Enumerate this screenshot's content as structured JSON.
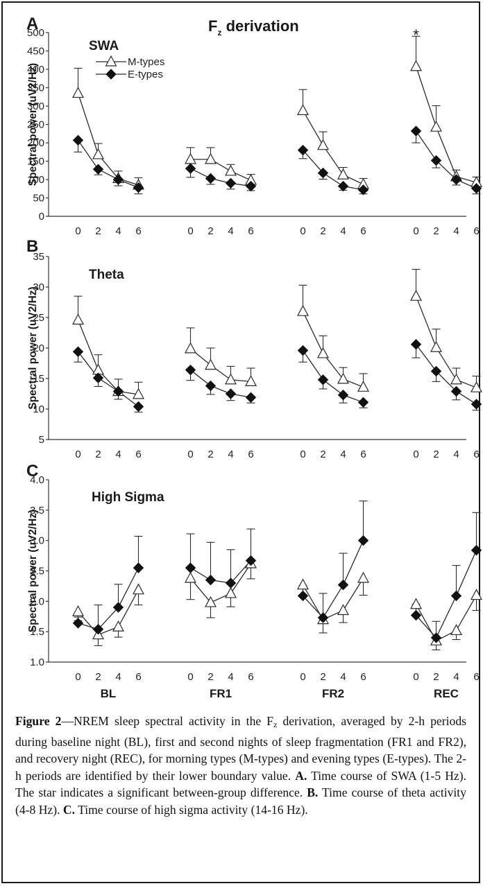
{
  "figure_title": "F",
  "figure_title_sub": "z",
  "figure_title_rest": " derivation",
  "legend": {
    "m_label": "M-types",
    "e_label": "E-types"
  },
  "group_labels": [
    "BL",
    "FR1",
    "FR2",
    "REC"
  ],
  "hour_ticks": [
    "0",
    "2",
    "4",
    "6"
  ],
  "colors": {
    "line": "#2a2a2a",
    "m_fill": "#ffffff",
    "e_fill": "#111111"
  },
  "caption": {
    "fig_label": "Figure 2",
    "text1": "—NREM sleep spectral activity in the F",
    "sub": "z",
    "text2": " derivation, averaged by 2-h periods during baseline night (BL), first and second nights of sleep fragmentation (FR1 and FR2), and recovery night (REC), for morning types (M-types) and evening types (E-types). The 2-h periods are identified by their lower boundary value. ",
    "a_label": "A.",
    "a_text": " Time course of SWA (1-5 Hz). The star indicates a significant between-group difference. ",
    "b_label": "B.",
    "b_text": " Time course of theta activity (4-8 Hz). ",
    "c_label": "C.",
    "c_text": " Time course of high sigma activity (14-16 Hz)."
  },
  "chart_data": [
    {
      "type": "line",
      "panel": "A",
      "title": "SWA",
      "ylabel": "Spectral power (uV2/Hz)",
      "ylim": [
        0,
        500
      ],
      "yticks": [
        "0",
        "50",
        "100",
        "150",
        "200",
        "250",
        "300",
        "350",
        "400",
        "450",
        "500"
      ],
      "grid": false,
      "legend_position": "top-left",
      "significance_marker": {
        "text": "*",
        "group": 3,
        "x": 0
      },
      "groups": [
        "BL",
        "FR1",
        "FR2",
        "REC"
      ],
      "x": [
        0,
        2,
        4,
        6
      ],
      "series": [
        {
          "name": "M-types",
          "marker": "open-triangle",
          "values": [
            [
              335,
              168,
              103,
              85
            ],
            [
              155,
              155,
              123,
              98
            ],
            [
              288,
              193,
              113,
              87
            ],
            [
              408,
              243,
              108,
              92
            ]
          ],
          "errors": [
            [
              68,
              30,
              20,
              20
            ],
            [
              32,
              32,
              18,
              16
            ],
            [
              57,
              37,
              20,
              16
            ],
            [
              82,
              58,
              18,
              15
            ]
          ],
          "error_dir": "up"
        },
        {
          "name": "E-types",
          "marker": "filled-diamond",
          "values": [
            [
              207,
              128,
              100,
              78
            ],
            [
              130,
              103,
              90,
              82
            ],
            [
              180,
              118,
              82,
              72
            ],
            [
              232,
              152,
              100,
              76
            ]
          ],
          "errors": [
            [
              32,
              15,
              17,
              17
            ],
            [
              24,
              16,
              16,
              12
            ],
            [
              23,
              17,
              11,
              11
            ],
            [
              32,
              20,
              15,
              15
            ]
          ],
          "error_dir": "down"
        }
      ]
    },
    {
      "type": "line",
      "panel": "B",
      "title": "Theta",
      "ylabel": "Spectral power (uV2/Hz)",
      "ylim": [
        5,
        35
      ],
      "yticks": [
        "5",
        "10",
        "15",
        "20",
        "25",
        "30",
        "35"
      ],
      "grid": false,
      "groups": [
        "BL",
        "FR1",
        "FR2",
        "REC"
      ],
      "x": [
        0,
        2,
        4,
        6
      ],
      "series": [
        {
          "name": "M-types",
          "marker": "open-triangle",
          "values": [
            [
              24.6,
              16.4,
              12.9,
              12.4
            ],
            [
              19.9,
              17.2,
              14.8,
              14.5
            ],
            [
              26.0,
              19.1,
              14.9,
              13.6
            ],
            [
              28.5,
              20.1,
              14.8,
              13.5
            ]
          ],
          "errors": [
            [
              3.9,
              2.5,
              2.0,
              2.0
            ],
            [
              3.4,
              2.8,
              2.2,
              2.2
            ],
            [
              4.3,
              2.9,
              1.9,
              2.2
            ],
            [
              4.4,
              3.0,
              1.9,
              1.9
            ]
          ],
          "error_dir": "up"
        },
        {
          "name": "E-types",
          "marker": "filled-diamond",
          "values": [
            [
              19.4,
              15.1,
              12.9,
              10.4
            ],
            [
              16.4,
              13.8,
              12.5,
              11.9
            ],
            [
              19.6,
              14.8,
              12.3,
              11.1
            ],
            [
              20.6,
              16.2,
              12.9,
              10.8
            ]
          ],
          "errors": [
            [
              1.7,
              1.4,
              1.3,
              0.9
            ],
            [
              1.7,
              1.4,
              1.1,
              0.9
            ],
            [
              1.9,
              1.5,
              1.3,
              0.9
            ],
            [
              2.2,
              1.7,
              1.4,
              1.0
            ]
          ],
          "error_dir": "down"
        }
      ]
    },
    {
      "type": "line",
      "panel": "C",
      "title": "High Sigma",
      "ylabel": "Spectral power (uV2/Hz)",
      "ylim": [
        1.0,
        4.0
      ],
      "yticks": [
        "1.0",
        "1.5",
        "2.0",
        "2.5",
        "3.0",
        "3.5",
        "4.0"
      ],
      "grid": false,
      "groups": [
        "BL",
        "FR1",
        "FR2",
        "REC"
      ],
      "x": [
        0,
        2,
        4,
        6
      ],
      "series": [
        {
          "name": "M-types",
          "marker": "open-triangle",
          "values": [
            [
              1.83,
              1.45,
              1.58,
              2.19
            ],
            [
              2.38,
              1.98,
              2.13,
              2.62
            ],
            [
              2.27,
              1.7,
              1.85,
              2.38
            ],
            [
              1.95,
              1.35,
              1.52,
              2.1
            ]
          ],
          "errors": [
            [
              0.15,
              0.18,
              0.17,
              0.25
            ],
            [
              0.35,
              0.25,
              0.22,
              0.25
            ],
            [
              0.2,
              0.22,
              0.2,
              0.28
            ],
            [
              0.17,
              0.15,
              0.15,
              0.25
            ]
          ],
          "error_dir": "down"
        },
        {
          "name": "E-types",
          "marker": "filled-diamond",
          "values": [
            [
              1.64,
              1.54,
              1.9,
              2.55
            ],
            [
              2.55,
              2.35,
              2.3,
              2.67
            ],
            [
              2.09,
              1.73,
              2.27,
              3.0
            ],
            [
              1.77,
              1.4,
              2.09,
              2.84
            ]
          ],
          "errors": [
            [
              0.1,
              0.4,
              0.38,
              0.52
            ],
            [
              0.56,
              0.62,
              0.55,
              0.52
            ],
            [
              0.17,
              0.4,
              0.52,
              0.65
            ],
            [
              0.18,
              0.27,
              0.5,
              0.62
            ]
          ],
          "error_dir": "up"
        }
      ]
    }
  ]
}
